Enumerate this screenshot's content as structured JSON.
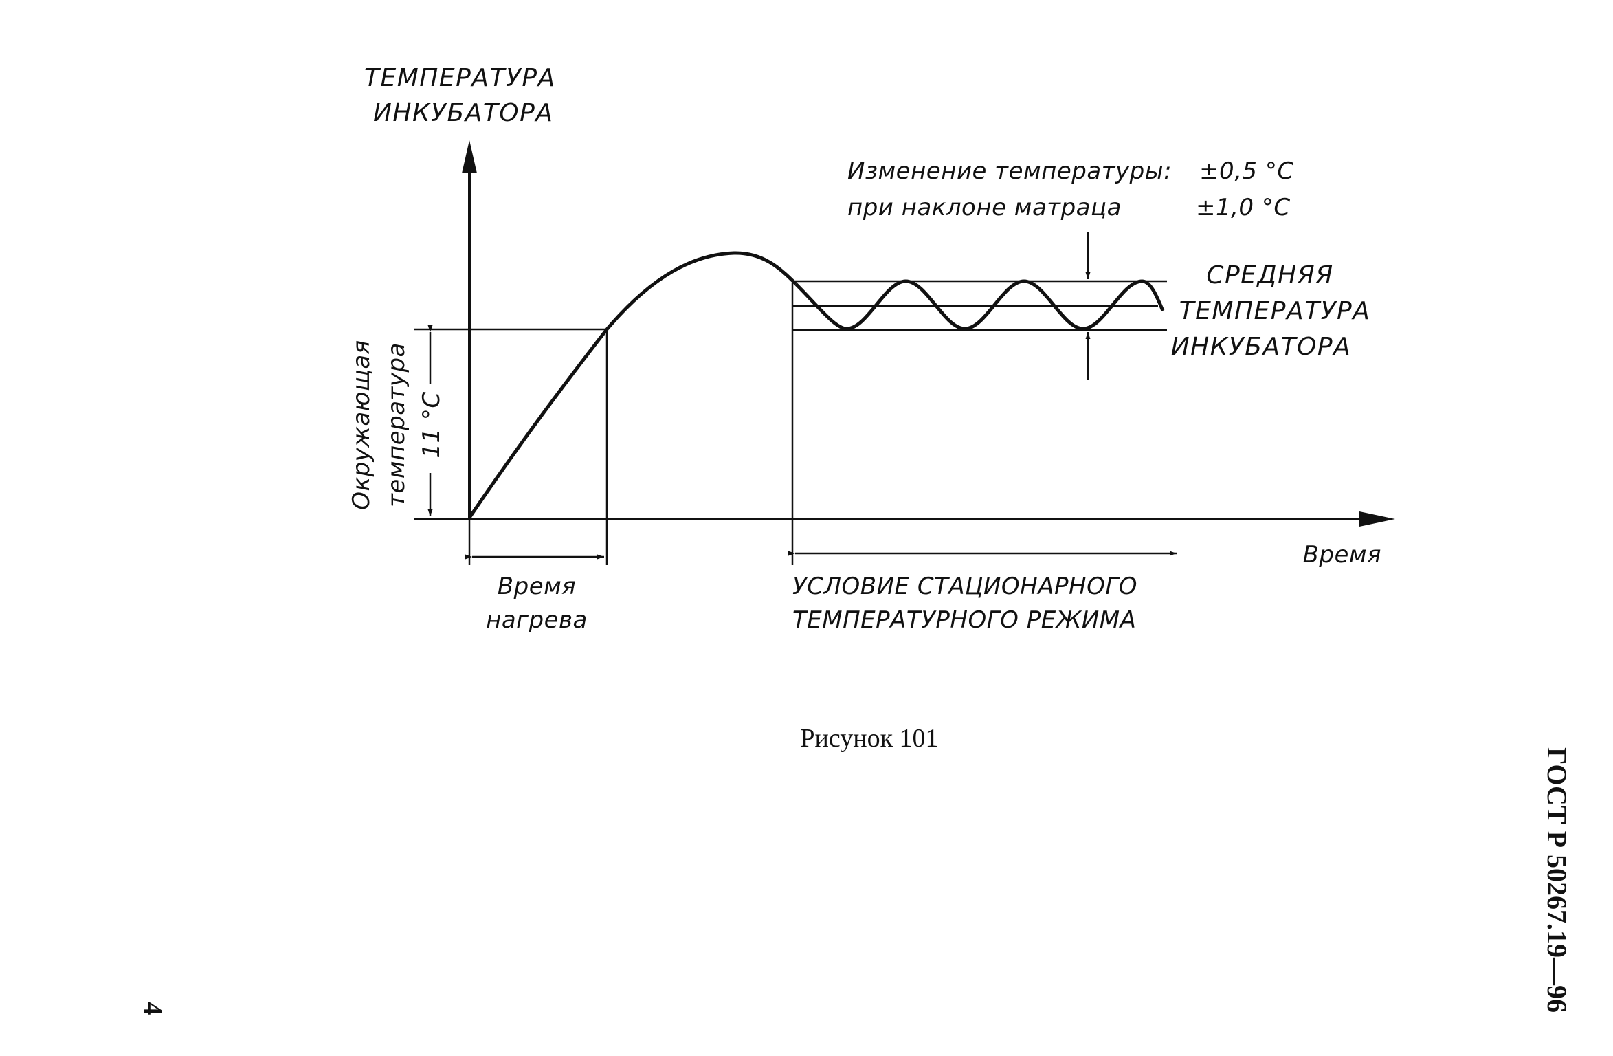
{
  "figure": {
    "y_axis_title": [
      "ТЕМПЕРАТУРА",
      "ИНКУБАТОРА"
    ],
    "x_axis_title": "Время",
    "ambient_label": [
      "Окружающая",
      "температура"
    ],
    "ambient_delta": "11 °C",
    "note_line1_text": "Изменение температуры:",
    "note_line1_value": "±0,5 °C",
    "note_line2_text": "при наклоне матраца",
    "note_line2_value": "±1,0 °C",
    "mean_temp_label": [
      "СРЕДНЯЯ",
      "ТЕМПЕРАТУРА",
      "ИНКУБАТОРА"
    ],
    "heating_time_label": [
      "Время",
      "нагрева"
    ],
    "steady_state_label": [
      "УСЛОВИЕ СТАЦИОНАРНОГО",
      "ТЕМПЕРАТУРНОГО РЕЖИМА"
    ],
    "caption": "Рисунок 101"
  },
  "page": {
    "standard_id": "ГОСТ Р 50267.19—96",
    "page_number": "4"
  }
}
